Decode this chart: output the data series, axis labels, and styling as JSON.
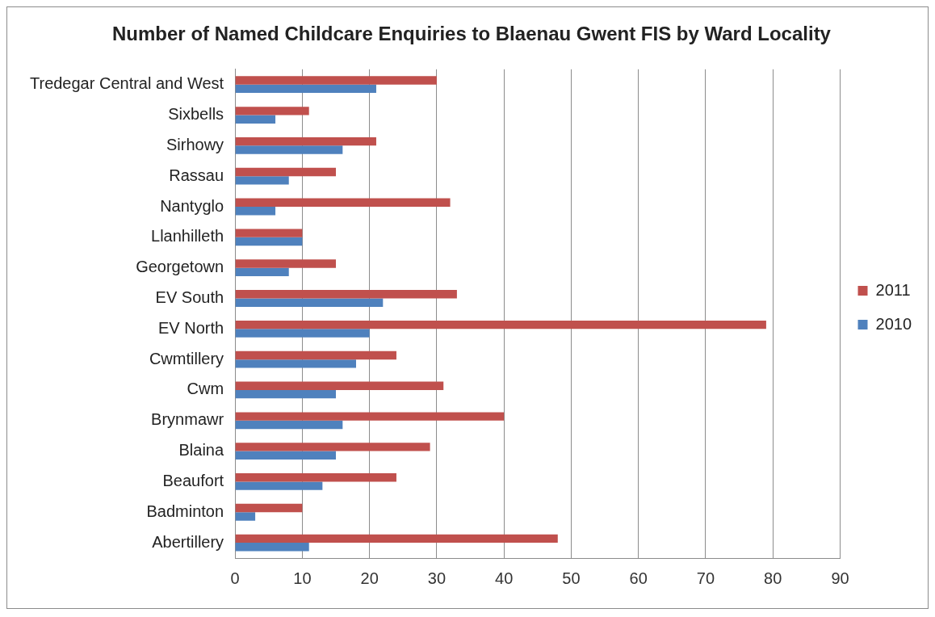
{
  "chart_data": {
    "type": "bar",
    "orientation": "horizontal",
    "title": "Number of Named Childcare Enquiries to Blaenau Gwent FIS by Ward Locality",
    "categories": [
      "Tredegar Central and West",
      "Sixbells",
      "Sirhowy",
      "Rassau",
      "Nantyglo",
      "Llanhilleth",
      "Georgetown",
      "EV South",
      "EV North",
      "Cwmtillery",
      "Cwm",
      "Brynmawr",
      "Blaina",
      "Beaufort",
      "Badminton",
      "Abertillery"
    ],
    "series": [
      {
        "name": "2011",
        "color": "#c0504d",
        "values": [
          30,
          11,
          21,
          15,
          32,
          10,
          15,
          33,
          79,
          24,
          31,
          40,
          29,
          24,
          10,
          48
        ]
      },
      {
        "name": "2010",
        "color": "#4f81bd",
        "values": [
          21,
          6,
          16,
          8,
          6,
          10,
          8,
          22,
          20,
          18,
          15,
          16,
          15,
          13,
          3,
          11
        ]
      }
    ],
    "xlim": [
      0,
      90
    ],
    "xticks": [
      0,
      10,
      20,
      30,
      40,
      50,
      60,
      70,
      80,
      90
    ],
    "grid": "x",
    "legend": "right"
  }
}
